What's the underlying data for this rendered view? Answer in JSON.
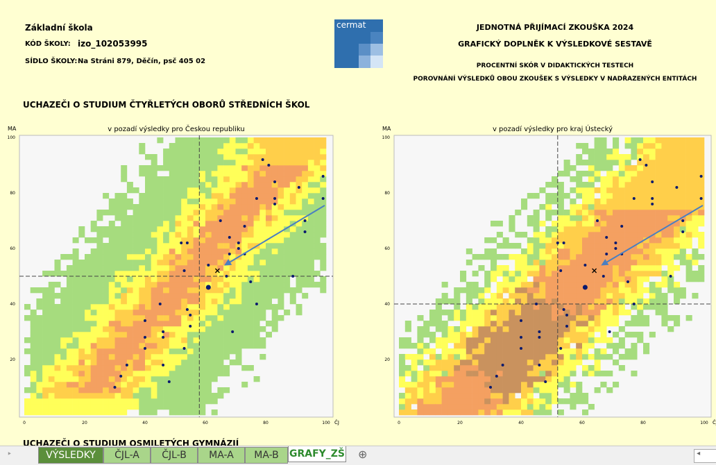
{
  "header": {
    "school_type": "Základní škola",
    "code_label": "KÓD ŠKOLY:",
    "code": "izo_102053995",
    "address_label": "SÍDLO ŠKOLY:",
    "address": "Na Stráni 879, Děčín, psč 405 02",
    "logo": "cermat",
    "title": "JEDNOTNÁ PŘIJÍMACÍ ZKOUŠKA 2024",
    "subtitle": "GRAFICKÝ DOPLNĚK K VÝSLEDKOVÉ SESTAVĚ",
    "line3": "PROCENTNÍ SKÓR V DIDAKTICKÝCH TESTECH",
    "line4": "POROVNÁNÍ VÝSLEDKŮ OBOU ZKOUŠEK S VÝSLEDKY V NADŘAZENÝCH ENTITÁCH"
  },
  "section_title": "UCHAZEČI O STUDIUM ČTYŘLETÝCH OBORŮ STŘEDNÍCH ŠKOL",
  "next_section_title": "UCHAZEČI O STUDIUM OSMILETÝCH GYMNÁZIÍ",
  "tabs": [
    "VÝSLEDKY",
    "ČJL-A",
    "ČJL-B",
    "MA-A",
    "MA-B",
    "GRAFY_ZŠ"
  ],
  "active_tab": "GRAFY_ZŠ",
  "chart_data": [
    {
      "type": "scatter",
      "title": "v pozadí výsledky pro Českou republiku",
      "ylabel": "MA",
      "xlabel": "ČJ",
      "xlim": [
        0,
        100
      ],
      "ylim": [
        0,
        100
      ],
      "xticks": [
        0,
        20,
        40,
        60,
        80,
        100
      ],
      "yticks": [
        20,
        40,
        60,
        80,
        100
      ],
      "color": "#0a1a6e",
      "vline": 58,
      "hline": 50,
      "cross": {
        "x": 64,
        "y": 52
      },
      "highlight": {
        "x": 61,
        "y": 46
      },
      "x": [
        79,
        81,
        83,
        91,
        99,
        99,
        77,
        83,
        83,
        93,
        93,
        65,
        73,
        68,
        71,
        71,
        68,
        73,
        52,
        54,
        61,
        53,
        67,
        75,
        89,
        45,
        77,
        54,
        40,
        55,
        55,
        46,
        46,
        40,
        69,
        53,
        40,
        34,
        46,
        32,
        48,
        30
      ],
      "y": [
        92,
        90,
        84,
        82,
        86,
        78,
        78,
        78,
        76,
        70,
        66,
        70,
        68,
        64,
        62,
        60,
        58,
        58,
        62,
        62,
        54,
        52,
        50,
        48,
        50,
        40,
        40,
        38,
        34,
        36,
        32,
        30,
        28,
        28,
        30,
        24,
        24,
        18,
        18,
        14,
        12,
        10
      ]
    },
    {
      "type": "scatter",
      "title": "v pozadí výsledky pro kraj Ústecký",
      "ylabel": "MA",
      "xlabel": "ČJ",
      "xlim": [
        0,
        100
      ],
      "ylim": [
        0,
        100
      ],
      "xticks": [
        0,
        20,
        40,
        60,
        80,
        100
      ],
      "yticks": [
        20,
        40,
        60,
        80,
        100
      ],
      "color": "#0a1a6e",
      "vline": 52,
      "hline": 40,
      "cross": {
        "x": 64,
        "y": 52
      },
      "highlight": {
        "x": 61,
        "y": 46
      },
      "x": [
        79,
        81,
        83,
        91,
        99,
        99,
        77,
        83,
        83,
        93,
        93,
        65,
        73,
        68,
        71,
        71,
        68,
        73,
        52,
        54,
        61,
        53,
        67,
        75,
        89,
        45,
        77,
        54,
        40,
        55,
        55,
        46,
        46,
        40,
        69,
        53,
        40,
        34,
        46,
        32,
        48,
        30
      ],
      "y": [
        92,
        90,
        84,
        82,
        86,
        78,
        78,
        78,
        76,
        70,
        66,
        70,
        68,
        64,
        62,
        60,
        58,
        58,
        62,
        62,
        54,
        52,
        50,
        48,
        50,
        40,
        40,
        38,
        34,
        36,
        32,
        30,
        28,
        28,
        30,
        24,
        24,
        18,
        18,
        14,
        12,
        10
      ]
    }
  ]
}
